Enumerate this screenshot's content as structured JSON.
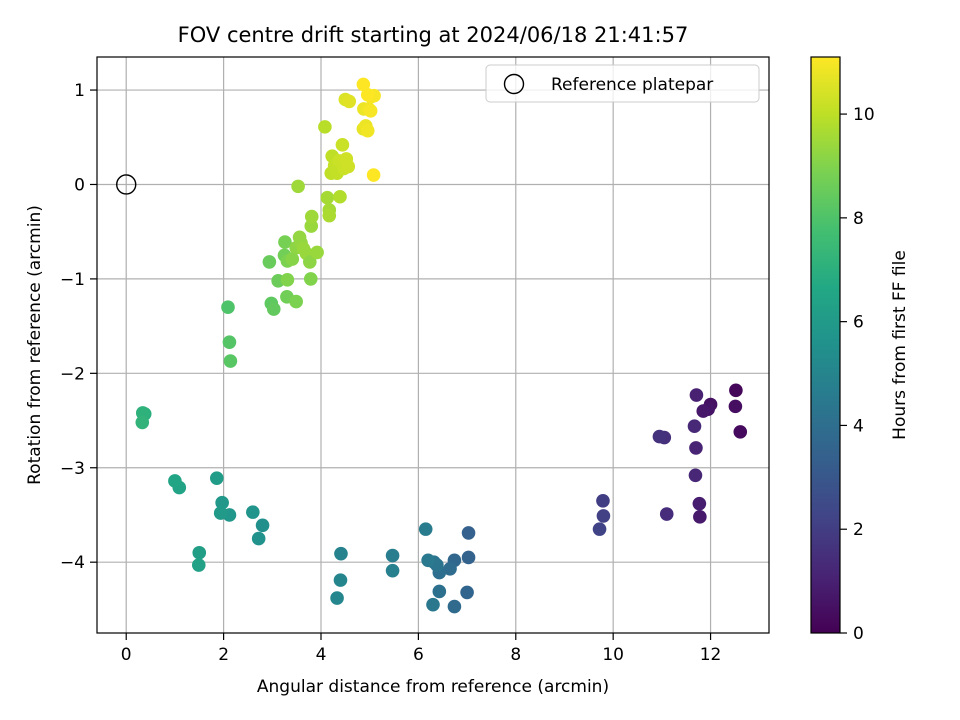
{
  "chart_data": {
    "type": "scatter",
    "title": "FOV centre drift starting at 2024/06/18 21:41:57",
    "xlabel": "Angular distance from reference (arcmin)",
    "ylabel": "Rotation from reference (arcmin)",
    "xlim": [
      -0.6,
      13.2
    ],
    "ylim": [
      -4.75,
      1.35
    ],
    "xticks": [
      0,
      2,
      4,
      6,
      8,
      10,
      12
    ],
    "yticks": [
      -4,
      -3,
      -2,
      -1,
      0,
      1
    ],
    "grid": true,
    "legend": {
      "placement": "top-right",
      "entries": [
        {
          "label": "Reference platepar",
          "marker": "open-circle"
        }
      ]
    },
    "reference_point": {
      "x": 0,
      "y": 0
    },
    "colorbar": {
      "label": "Hours from first FF file",
      "colormap": "viridis",
      "range": [
        0,
        11.1
      ],
      "ticks": [
        0,
        2,
        4,
        6,
        8,
        10
      ]
    },
    "points": [
      {
        "x": 12.52,
        "y": -2.18,
        "h": 0.2
      },
      {
        "x": 12.61,
        "y": -2.62,
        "h": 0.3
      },
      {
        "x": 12.51,
        "y": -2.35,
        "h": 0.4
      },
      {
        "x": 12.0,
        "y": -2.33,
        "h": 0.5
      },
      {
        "x": 11.95,
        "y": -2.38,
        "h": 0.6
      },
      {
        "x": 11.85,
        "y": -2.4,
        "h": 0.7
      },
      {
        "x": 11.78,
        "y": -3.52,
        "h": 0.8
      },
      {
        "x": 11.77,
        "y": -3.38,
        "h": 0.9
      },
      {
        "x": 11.71,
        "y": -2.23,
        "h": 1.0
      },
      {
        "x": 11.7,
        "y": -2.79,
        "h": 1.1
      },
      {
        "x": 11.69,
        "y": -3.08,
        "h": 1.2
      },
      {
        "x": 11.67,
        "y": -2.56,
        "h": 1.3
      },
      {
        "x": 11.1,
        "y": -3.49,
        "h": 1.4
      },
      {
        "x": 11.05,
        "y": -2.68,
        "h": 1.5
      },
      {
        "x": 10.95,
        "y": -2.67,
        "h": 1.6
      },
      {
        "x": 9.79,
        "y": -3.35,
        "h": 2.0
      },
      {
        "x": 9.8,
        "y": -3.51,
        "h": 2.1
      },
      {
        "x": 9.72,
        "y": -3.65,
        "h": 2.2
      },
      {
        "x": 7.03,
        "y": -3.69,
        "h": 3.4
      },
      {
        "x": 7.03,
        "y": -3.95,
        "h": 3.5
      },
      {
        "x": 7.0,
        "y": -4.32,
        "h": 3.6
      },
      {
        "x": 6.74,
        "y": -3.98,
        "h": 3.7
      },
      {
        "x": 6.74,
        "y": -4.47,
        "h": 3.8
      },
      {
        "x": 6.65,
        "y": -4.07,
        "h": 3.9
      },
      {
        "x": 6.43,
        "y": -4.11,
        "h": 4.0
      },
      {
        "x": 6.43,
        "y": -4.31,
        "h": 4.1
      },
      {
        "x": 6.38,
        "y": -4.03,
        "h": 4.2
      },
      {
        "x": 6.32,
        "y": -4.0,
        "h": 4.3
      },
      {
        "x": 6.3,
        "y": -4.45,
        "h": 4.4
      },
      {
        "x": 6.2,
        "y": -3.98,
        "h": 4.5
      },
      {
        "x": 6.15,
        "y": -3.65,
        "h": 4.6
      },
      {
        "x": 5.47,
        "y": -3.93,
        "h": 4.7
      },
      {
        "x": 5.47,
        "y": -4.09,
        "h": 4.8
      },
      {
        "x": 4.41,
        "y": -3.91,
        "h": 4.9
      },
      {
        "x": 4.4,
        "y": -4.19,
        "h": 5.0
      },
      {
        "x": 4.33,
        "y": -4.38,
        "h": 5.1
      },
      {
        "x": 2.8,
        "y": -3.61,
        "h": 5.5
      },
      {
        "x": 2.72,
        "y": -3.75,
        "h": 5.6
      },
      {
        "x": 2.6,
        "y": -3.47,
        "h": 5.7
      },
      {
        "x": 2.12,
        "y": -3.5,
        "h": 5.8
      },
      {
        "x": 1.97,
        "y": -3.37,
        "h": 5.9
      },
      {
        "x": 1.94,
        "y": -3.48,
        "h": 6.0
      },
      {
        "x": 1.86,
        "y": -3.11,
        "h": 6.1
      },
      {
        "x": 1.5,
        "y": -3.9,
        "h": 6.2
      },
      {
        "x": 1.49,
        "y": -4.03,
        "h": 6.3
      },
      {
        "x": 1.09,
        "y": -3.21,
        "h": 6.4
      },
      {
        "x": 1.0,
        "y": -3.14,
        "h": 6.5
      },
      {
        "x": 0.38,
        "y": -2.43,
        "h": 7.0
      },
      {
        "x": 0.34,
        "y": -2.42,
        "h": 7.1
      },
      {
        "x": 0.33,
        "y": -2.52,
        "h": 7.2
      },
      {
        "x": 2.09,
        "y": -1.3,
        "h": 8.0
      },
      {
        "x": 2.12,
        "y": -1.67,
        "h": 8.1
      },
      {
        "x": 2.14,
        "y": -1.87,
        "h": 8.2
      },
      {
        "x": 2.98,
        "y": -1.26,
        "h": 8.3
      },
      {
        "x": 3.03,
        "y": -1.32,
        "h": 8.4
      },
      {
        "x": 2.94,
        "y": -0.82,
        "h": 8.5
      },
      {
        "x": 3.12,
        "y": -1.02,
        "h": 8.6
      },
      {
        "x": 3.25,
        "y": -0.75,
        "h": 8.7
      },
      {
        "x": 3.26,
        "y": -0.61,
        "h": 8.8
      },
      {
        "x": 3.31,
        "y": -0.81,
        "h": 8.9
      },
      {
        "x": 3.31,
        "y": -1.01,
        "h": 9.0
      },
      {
        "x": 3.3,
        "y": -1.19,
        "h": 8.7
      },
      {
        "x": 3.49,
        "y": -1.24,
        "h": 8.9
      },
      {
        "x": 3.41,
        "y": -0.79,
        "h": 9.1
      },
      {
        "x": 3.49,
        "y": -0.67,
        "h": 9.2
      },
      {
        "x": 3.56,
        "y": -0.56,
        "h": 9.3
      },
      {
        "x": 3.59,
        "y": -0.62,
        "h": 9.3
      },
      {
        "x": 3.64,
        "y": -0.68,
        "h": 9.4
      },
      {
        "x": 3.7,
        "y": -0.73,
        "h": 9.4
      },
      {
        "x": 3.77,
        "y": -0.82,
        "h": 9.2
      },
      {
        "x": 3.79,
        "y": -1.0,
        "h": 9.0
      },
      {
        "x": 3.8,
        "y": -0.44,
        "h": 9.4
      },
      {
        "x": 3.81,
        "y": -0.34,
        "h": 9.5
      },
      {
        "x": 3.92,
        "y": -0.72,
        "h": 9.4
      },
      {
        "x": 3.53,
        "y": -0.02,
        "h": 9.5
      },
      {
        "x": 4.13,
        "y": -0.14,
        "h": 9.6
      },
      {
        "x": 4.17,
        "y": -0.27,
        "h": 9.6
      },
      {
        "x": 4.17,
        "y": -0.33,
        "h": 9.7
      },
      {
        "x": 4.39,
        "y": -0.13,
        "h": 9.8
      },
      {
        "x": 4.08,
        "y": 0.61,
        "h": 9.9
      },
      {
        "x": 4.21,
        "y": 0.12,
        "h": 10.0
      },
      {
        "x": 4.23,
        "y": 0.3,
        "h": 10.0
      },
      {
        "x": 4.28,
        "y": 0.2,
        "h": 10.1
      },
      {
        "x": 4.33,
        "y": 0.12,
        "h": 10.1
      },
      {
        "x": 4.37,
        "y": 0.25,
        "h": 10.2
      },
      {
        "x": 4.44,
        "y": 0.42,
        "h": 10.2
      },
      {
        "x": 4.47,
        "y": 0.17,
        "h": 10.2
      },
      {
        "x": 4.52,
        "y": 0.27,
        "h": 10.3
      },
      {
        "x": 4.56,
        "y": 0.19,
        "h": 10.3
      },
      {
        "x": 4.5,
        "y": 0.9,
        "h": 10.5
      },
      {
        "x": 4.58,
        "y": 0.88,
        "h": 10.6
      },
      {
        "x": 4.87,
        "y": 0.59,
        "h": 10.7
      },
      {
        "x": 4.88,
        "y": 0.8,
        "h": 10.8
      },
      {
        "x": 4.92,
        "y": 0.62,
        "h": 10.8
      },
      {
        "x": 4.96,
        "y": 0.57,
        "h": 10.9
      },
      {
        "x": 4.98,
        "y": 0.8,
        "h": 10.9
      },
      {
        "x": 5.02,
        "y": 0.78,
        "h": 11.0
      },
      {
        "x": 5.03,
        "y": 0.93,
        "h": 11.0
      },
      {
        "x": 5.09,
        "y": 0.94,
        "h": 11.0
      },
      {
        "x": 4.87,
        "y": 1.06,
        "h": 11.1
      },
      {
        "x": 4.96,
        "y": 0.95,
        "h": 11.1
      },
      {
        "x": 5.08,
        "y": 0.1,
        "h": 11.1
      }
    ]
  }
}
